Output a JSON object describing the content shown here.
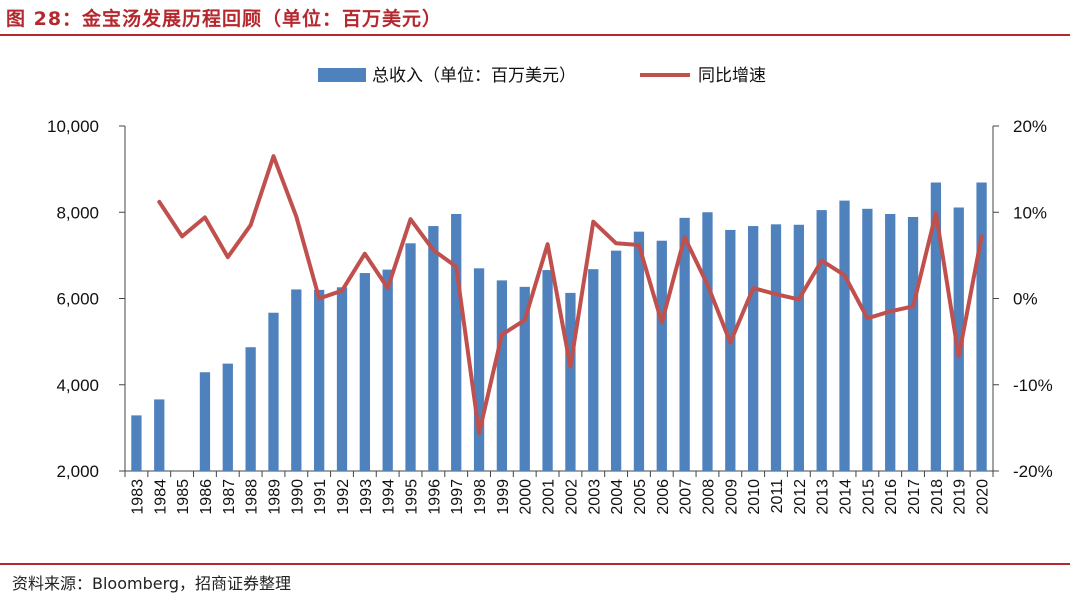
{
  "header": {
    "title": "图 28：金宝汤发展历程回顾（单位：百万美元）"
  },
  "footer": {
    "source": "资料来源：Bloomberg，招商证券整理"
  },
  "colors": {
    "accent": "#B5282E",
    "bar": "#4F81BD",
    "line": "#C0504D"
  },
  "chart_data": {
    "type": "bar",
    "categories": [
      "1983",
      "1984",
      "1985",
      "1986",
      "1987",
      "1988",
      "1989",
      "1990",
      "1991",
      "1992",
      "1993",
      "1994",
      "1995",
      "1996",
      "1997",
      "1998",
      "1999",
      "2000",
      "2001",
      "2002",
      "2003",
      "2004",
      "2005",
      "2006",
      "2007",
      "2008",
      "2009",
      "2010",
      "2011",
      "2012",
      "2013",
      "2014",
      "2015",
      "2016",
      "2017",
      "2018",
      "2019",
      "2020"
    ],
    "series": [
      {
        "name": "总收入（单位：百万美元）",
        "type": "bar",
        "axis": "left",
        "values": [
          3290,
          3660,
          null,
          4290,
          4490,
          4870,
          5670,
          6210,
          6200,
          6260,
          6590,
          6670,
          7280,
          7680,
          7960,
          6700,
          6420,
          6270,
          6660,
          6130,
          6680,
          7110,
          7550,
          7340,
          7870,
          8000,
          7590,
          7680,
          7720,
          7710,
          8050,
          8270,
          8080,
          7960,
          7890,
          8690,
          8110,
          8690
        ]
      },
      {
        "name": "同比增速",
        "type": "line",
        "axis": "right",
        "values": [
          null,
          11.2,
          7.2,
          9.4,
          4.8,
          8.5,
          16.5,
          9.5,
          0.0,
          0.9,
          5.2,
          1.2,
          9.2,
          5.6,
          3.7,
          -15.6,
          -4.2,
          -2.5,
          6.3,
          -7.9,
          8.9,
          6.4,
          6.2,
          -2.8,
          7.1,
          1.6,
          -5.1,
          1.2,
          0.5,
          -0.1,
          4.4,
          2.7,
          -2.3,
          -1.5,
          -0.9,
          9.9,
          -6.7,
          7.2
        ]
      }
    ],
    "y_left": {
      "ticks": [
        "2,000",
        "4,000",
        "6,000",
        "8,000",
        "10,000"
      ],
      "ylim": [
        2000,
        10000
      ]
    },
    "y_right": {
      "ticks": [
        "-20%",
        "-10%",
        "0%",
        "10%",
        "20%"
      ],
      "ylim": [
        -20,
        20
      ]
    },
    "legend_position": "top-center",
    "grid": false
  }
}
